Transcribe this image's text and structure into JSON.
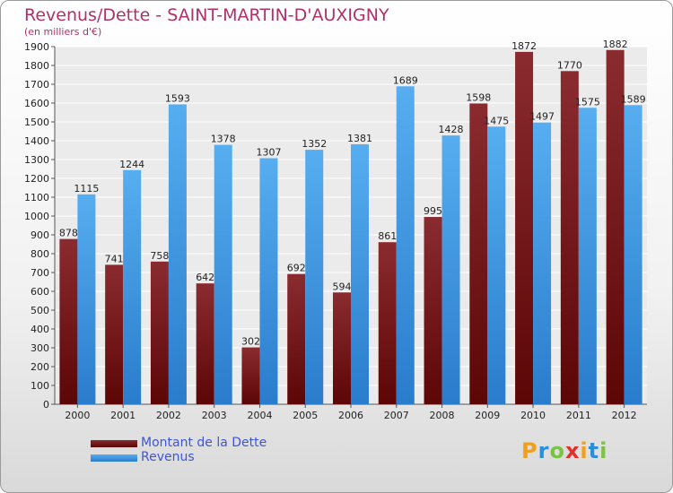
{
  "title": "Revenus/Dette - SAINT-MARTIN-D'AUXIGNY",
  "subtitle": "(en milliers d'€)",
  "logo": {
    "letters": [
      "P",
      "r",
      "o",
      "x",
      "i",
      "t",
      "i"
    ],
    "colors": [
      "#f0a020",
      "#2a8fd8",
      "#7cc243",
      "#e0302a",
      "#f0a020",
      "#2a8fd8",
      "#7cc243"
    ]
  },
  "colors": {
    "dette": "#7a1e22",
    "revenus": "#3f9be0",
    "legend_text": "#3d55d6",
    "title": "#b0306a"
  },
  "chart_data": {
    "type": "bar",
    "title": "Revenus/Dette - SAINT-MARTIN-D'AUXIGNY",
    "subtitle": "(en milliers d'€)",
    "categories": [
      "2000",
      "2001",
      "2002",
      "2003",
      "2004",
      "2005",
      "2006",
      "2007",
      "2008",
      "2009",
      "2010",
      "2011",
      "2012"
    ],
    "series": [
      {
        "name": "Montant de la Dette",
        "values": [
          878,
          741,
          758,
          642,
          302,
          692,
          594,
          861,
          995,
          1598,
          1872,
          1770,
          1882
        ]
      },
      {
        "name": "Revenus",
        "values": [
          1115,
          1244,
          1593,
          1378,
          1307,
          1352,
          1381,
          1689,
          1428,
          1475,
          1497,
          1575,
          1589
        ]
      }
    ],
    "ylim": [
      0,
      1900
    ],
    "ytick_step": 100,
    "grid": true,
    "legend": "bottom-left"
  }
}
